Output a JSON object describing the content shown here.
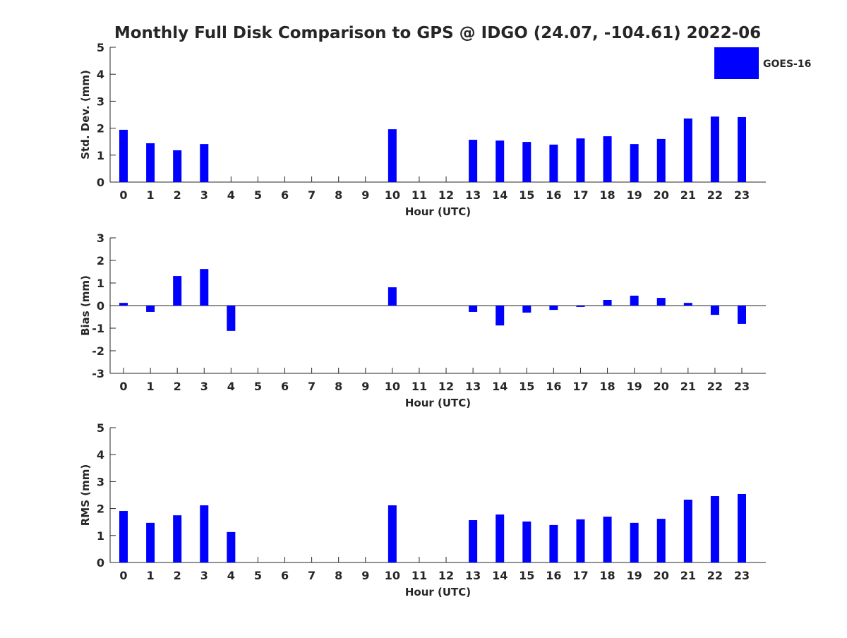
{
  "chart_data": {
    "type": "bar",
    "title": "Monthly Full Disk Comparison to GPS @ IDGO (24.07, -104.61) 2022-06",
    "legend": {
      "entries": [
        "GOES-16"
      ],
      "placement": "top-right"
    },
    "series_color": "#0000ff",
    "categories": [
      "0",
      "1",
      "2",
      "3",
      "4",
      "5",
      "6",
      "7",
      "8",
      "9",
      "10",
      "11",
      "12",
      "13",
      "14",
      "15",
      "16",
      "17",
      "18",
      "19",
      "20",
      "21",
      "22",
      "23"
    ],
    "panels": [
      {
        "ylabel": "Std. Dev. (mm)",
        "xlabel": "Hour (UTC)",
        "ylim": [
          0,
          5
        ],
        "yticks": [
          "0",
          "1",
          "2",
          "3",
          "4",
          "5"
        ],
        "values": [
          1.94,
          1.44,
          1.18,
          1.41,
          null,
          null,
          null,
          null,
          null,
          null,
          1.96,
          null,
          null,
          1.57,
          1.54,
          1.49,
          1.39,
          1.62,
          1.7,
          1.41,
          1.6,
          2.36,
          2.43,
          2.41
        ]
      },
      {
        "ylabel": "Bias (mm)",
        "xlabel": "Hour (UTC)",
        "ylim": [
          -3,
          3
        ],
        "yticks": [
          "-3",
          "-2",
          "-1",
          "0",
          "1",
          "2",
          "3"
        ],
        "values": [
          0.12,
          -0.28,
          1.31,
          1.62,
          -1.12,
          null,
          null,
          null,
          null,
          null,
          0.81,
          null,
          null,
          -0.28,
          -0.88,
          -0.31,
          -0.19,
          -0.06,
          0.25,
          0.44,
          0.34,
          0.12,
          -0.41,
          -0.81
        ]
      },
      {
        "ylabel": "RMS (mm)",
        "xlabel": "Hour (UTC)",
        "ylim": [
          0,
          5
        ],
        "yticks": [
          "0",
          "1",
          "2",
          "3",
          "4",
          "5"
        ],
        "values": [
          1.91,
          1.47,
          1.75,
          2.12,
          1.13,
          null,
          null,
          null,
          null,
          null,
          2.12,
          null,
          null,
          1.57,
          1.78,
          1.52,
          1.39,
          1.6,
          1.7,
          1.47,
          1.62,
          2.33,
          2.46,
          2.54
        ]
      }
    ]
  }
}
